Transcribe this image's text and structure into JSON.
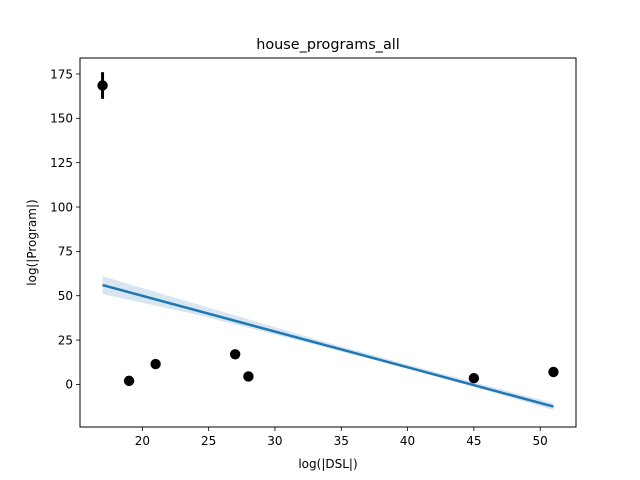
{
  "chart_data": {
    "type": "scatter",
    "title": "house_programs_all",
    "xlabel": "log(|DSL|)",
    "ylabel": "log(|Program|)",
    "xlim": [
      15.3,
      52.7
    ],
    "ylim": [
      -24,
      184
    ],
    "xticks": [
      20,
      25,
      30,
      35,
      40,
      45,
      50
    ],
    "yticks": [
      0,
      25,
      50,
      75,
      100,
      125,
      150,
      175
    ],
    "grid": false,
    "points": [
      {
        "x": 17,
        "y": 168.5,
        "err_low": 161,
        "err_high": 176
      },
      {
        "x": 19,
        "y": 2
      },
      {
        "x": 21,
        "y": 11.5
      },
      {
        "x": 27,
        "y": 17
      },
      {
        "x": 28,
        "y": 4.5
      },
      {
        "x": 45,
        "y": 3.5
      },
      {
        "x": 51,
        "y": 7
      }
    ],
    "regression": {
      "x_start": 17,
      "y_start": 56,
      "x_end": 51,
      "y_end": -12.5
    },
    "confidence_band": [
      {
        "x": 17,
        "lower": 51,
        "upper": 61
      },
      {
        "x": 24,
        "lower": 39.5,
        "upper": 45.5
      },
      {
        "x": 34,
        "lower": 20.5,
        "upper": 23.5
      },
      {
        "x": 40,
        "lower": 8.8,
        "upper": 11.2
      },
      {
        "x": 45,
        "lower": -1.3,
        "upper": 1.3
      },
      {
        "x": 51,
        "lower": -14.5,
        "upper": -10.5
      }
    ],
    "colors": {
      "points": "#000000",
      "line": "#1f77b4",
      "band": "#1f77b4"
    }
  }
}
